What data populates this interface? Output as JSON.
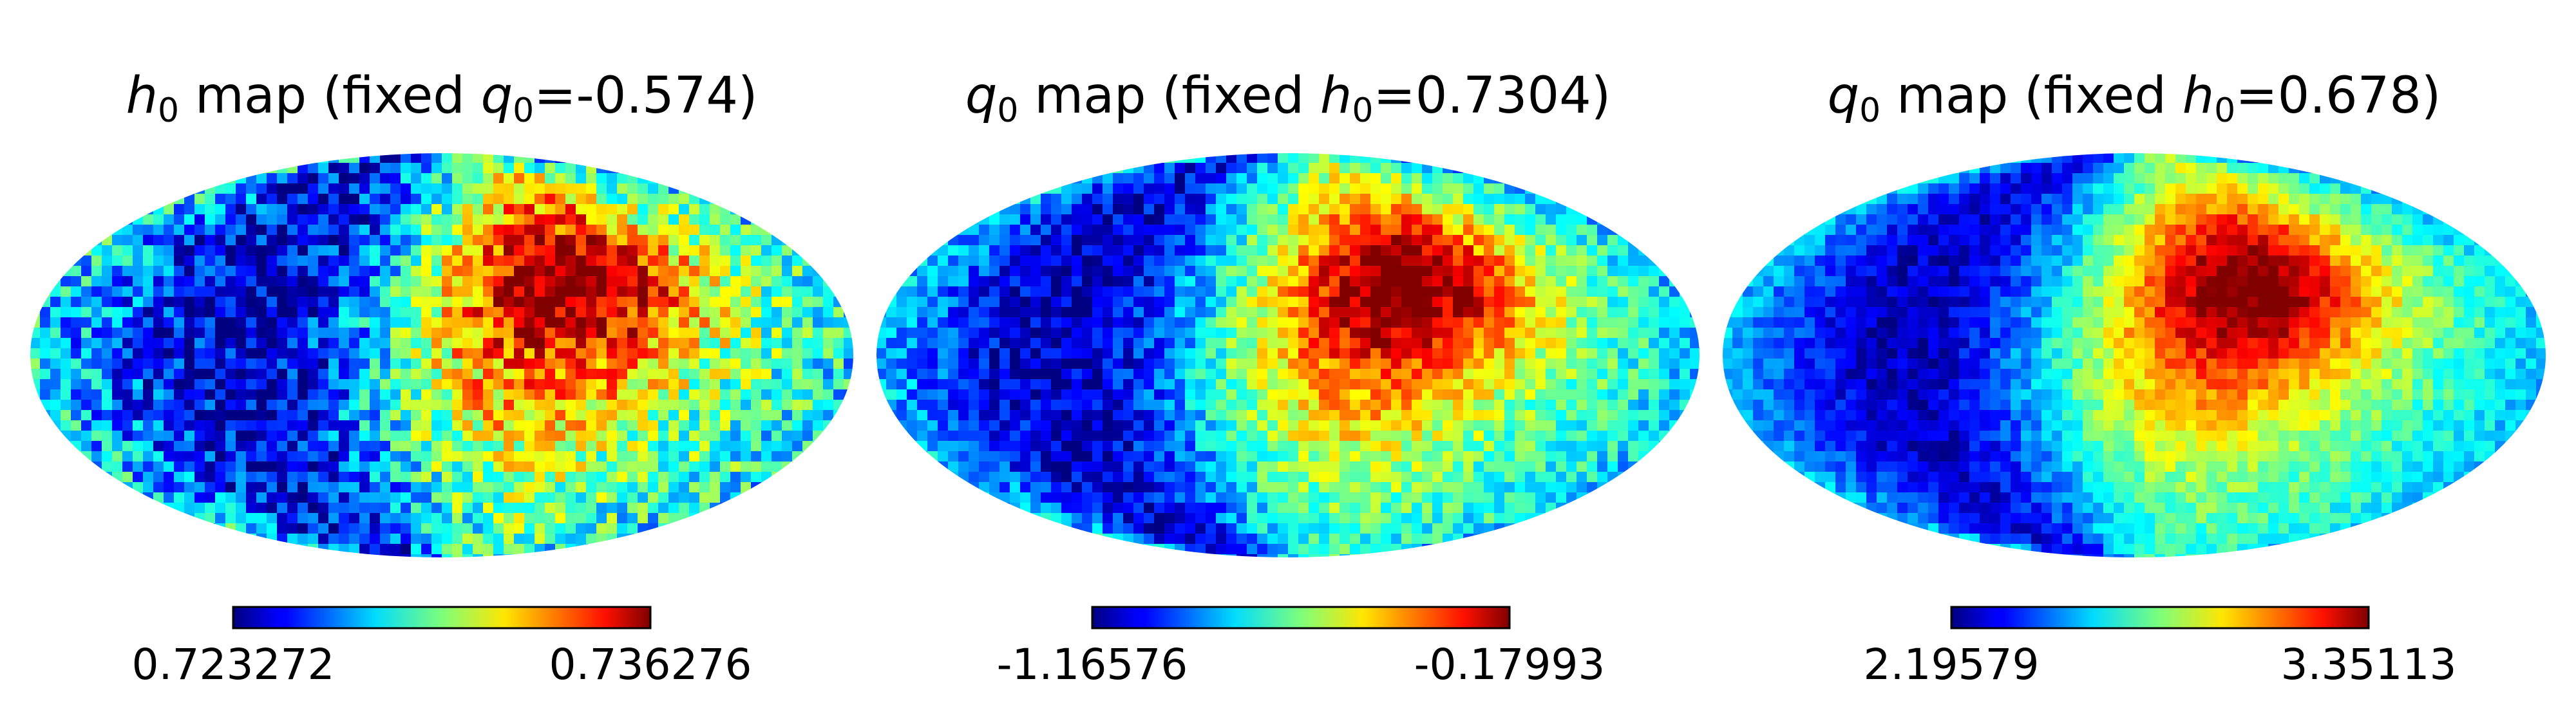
{
  "chart_data": [
    {
      "type": "heatmap",
      "projection": "mollweide",
      "title_var": "h",
      "title_sub": "0",
      "title_mid": " map (fixed ",
      "title_fixed_var": "q",
      "title_fixed_sub": "0",
      "title_fixed_value": "=-0.574)",
      "colorbar": {
        "min_label": "0.723272",
        "max_label": "0.736276",
        "colormap": "jet"
      },
      "pattern": {
        "blue_center_lon": -80,
        "red_center_lon": 60,
        "red_center_lat": 35,
        "yellow_center_lat": -20,
        "noise": 0.18,
        "seed": 11
      }
    },
    {
      "type": "heatmap",
      "projection": "mollweide",
      "title_var": "q",
      "title_sub": "0",
      "title_mid": " map (fixed ",
      "title_fixed_var": "h",
      "title_fixed_sub": "0",
      "title_fixed_value": "=0.7304)",
      "colorbar": {
        "min_label": "-1.16576",
        "max_label": "-0.17993",
        "colormap": "jet"
      },
      "pattern": {
        "blue_center_lon": -95,
        "red_center_lon": 55,
        "red_center_lat": 35,
        "yellow_center_lat": -15,
        "noise": 0.12,
        "seed": 23
      }
    },
    {
      "type": "heatmap",
      "projection": "mollweide",
      "title_var": "q",
      "title_sub": "0",
      "title_mid": " map (fixed ",
      "title_fixed_var": "h",
      "title_fixed_sub": "0",
      "title_fixed_value": "=0.678)",
      "colorbar": {
        "min_label": "2.19579",
        "max_label": "3.35113",
        "colormap": "jet"
      },
      "pattern": {
        "blue_center_lon": -95,
        "red_center_lon": 55,
        "red_center_lat": 35,
        "yellow_center_lat": -15,
        "noise": 0.08,
        "seed": 37
      }
    }
  ]
}
